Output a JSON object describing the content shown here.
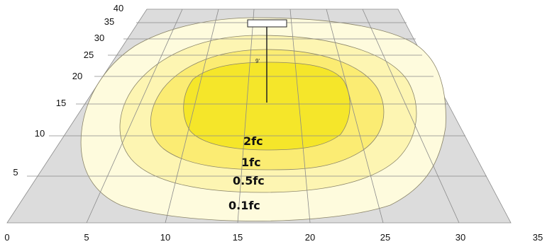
{
  "x_ticks": [
    "0",
    "5",
    "10",
    "15",
    "20",
    "25",
    "30",
    "35"
  ],
  "y_ticks": [
    "5",
    "10",
    "15",
    "20",
    "25",
    "30",
    "35",
    "40"
  ],
  "pole_height_label": "9'",
  "contours": [
    {
      "label": "0.1fc",
      "color": "#fefbdd"
    },
    {
      "label": "0.5fc",
      "color": "#fdf5b2"
    },
    {
      "label": "1fc",
      "color": "#fbec73"
    },
    {
      "label": "2fc",
      "color": "#f5e62a"
    }
  ],
  "colors": {
    "ground": "#dcdcdc",
    "gridline": "#8a8a8a",
    "contour_edge": "#8a8468"
  }
}
